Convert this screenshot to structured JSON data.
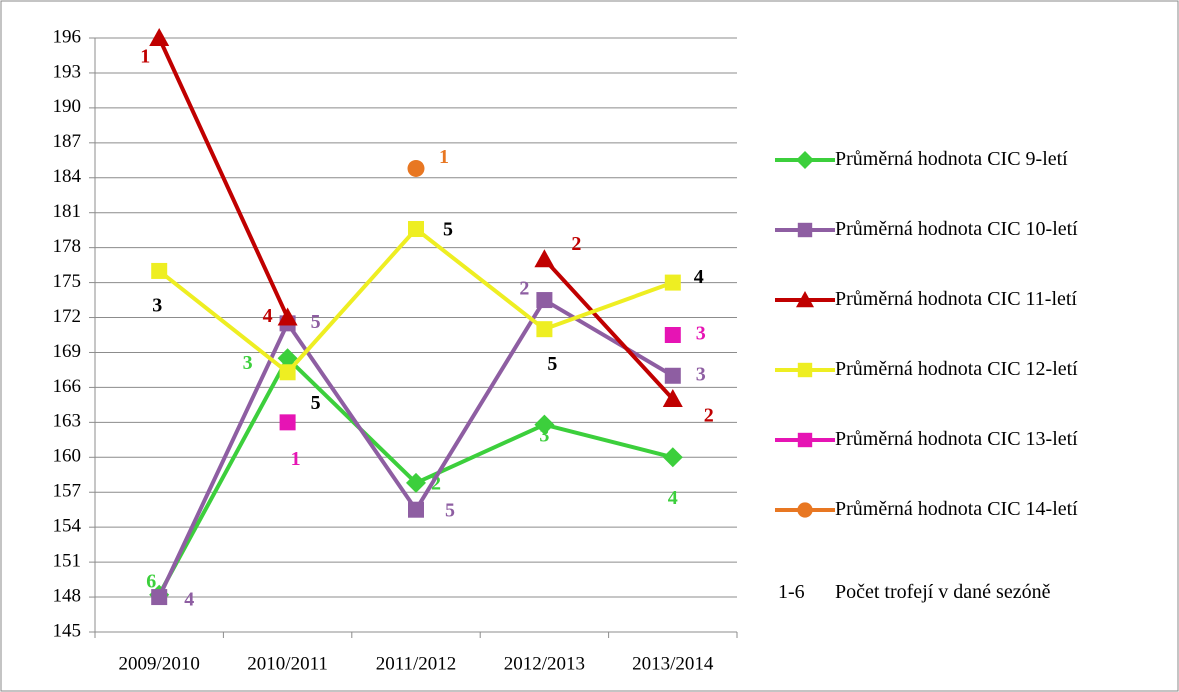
{
  "chart_data": {
    "type": "line",
    "categories": [
      "2009/2010",
      "2010/2011",
      "2011/2012",
      "2012/2013",
      "2013/2014"
    ],
    "ylim": [
      145,
      196
    ],
    "yticks": [
      145,
      148,
      151,
      154,
      157,
      160,
      163,
      166,
      169,
      172,
      175,
      178,
      181,
      184,
      187,
      190,
      193,
      196
    ],
    "grid": true,
    "legend": "right",
    "series": [
      {
        "name": "Průměrná hodnota CIC 9-letí",
        "color": "#3ccf3c",
        "marker": "diamond",
        "values": [
          148.2,
          168.5,
          157.8,
          162.8,
          160
        ],
        "trophy_counts": [
          6,
          3,
          2,
          3,
          4
        ]
      },
      {
        "name": "Průměrná hodnota CIC 10-letí",
        "color": "#8e5ea2",
        "marker": "square",
        "values": [
          148,
          171.5,
          155.5,
          173.5,
          167
        ],
        "trophy_counts": [
          4,
          5,
          5,
          2,
          3
        ]
      },
      {
        "name": "Průměrná hodnota CIC 11-letí",
        "color": "#c00000",
        "marker": "triangle",
        "values": [
          196,
          172,
          null,
          177,
          165
        ],
        "trophy_counts": [
          1,
          4,
          null,
          2,
          2
        ]
      },
      {
        "name": "Průměrná hodnota CIC 12-letí",
        "color": "#eeee22",
        "marker": "square",
        "label_color": "#000000",
        "values": [
          176,
          167.3,
          179.6,
          171,
          175
        ],
        "trophy_counts": [
          3,
          5,
          5,
          5,
          4
        ]
      },
      {
        "name": "Průměrná hodnota CIC 13-letí",
        "color": "#e614b4",
        "marker": "square",
        "values": [
          null,
          163,
          null,
          null,
          170.5
        ],
        "trophy_counts": [
          null,
          1,
          null,
          null,
          3
        ]
      },
      {
        "name": "Průměrná hodnota CIC 14-letí",
        "color": "#e87722",
        "marker": "circle",
        "values": [
          null,
          null,
          184.8,
          null,
          null
        ],
        "trophy_counts": [
          null,
          null,
          1,
          null,
          null
        ]
      }
    ],
    "legend_note": {
      "key": "1-6",
      "text": "Počet trofejí v dané sezóně"
    }
  }
}
